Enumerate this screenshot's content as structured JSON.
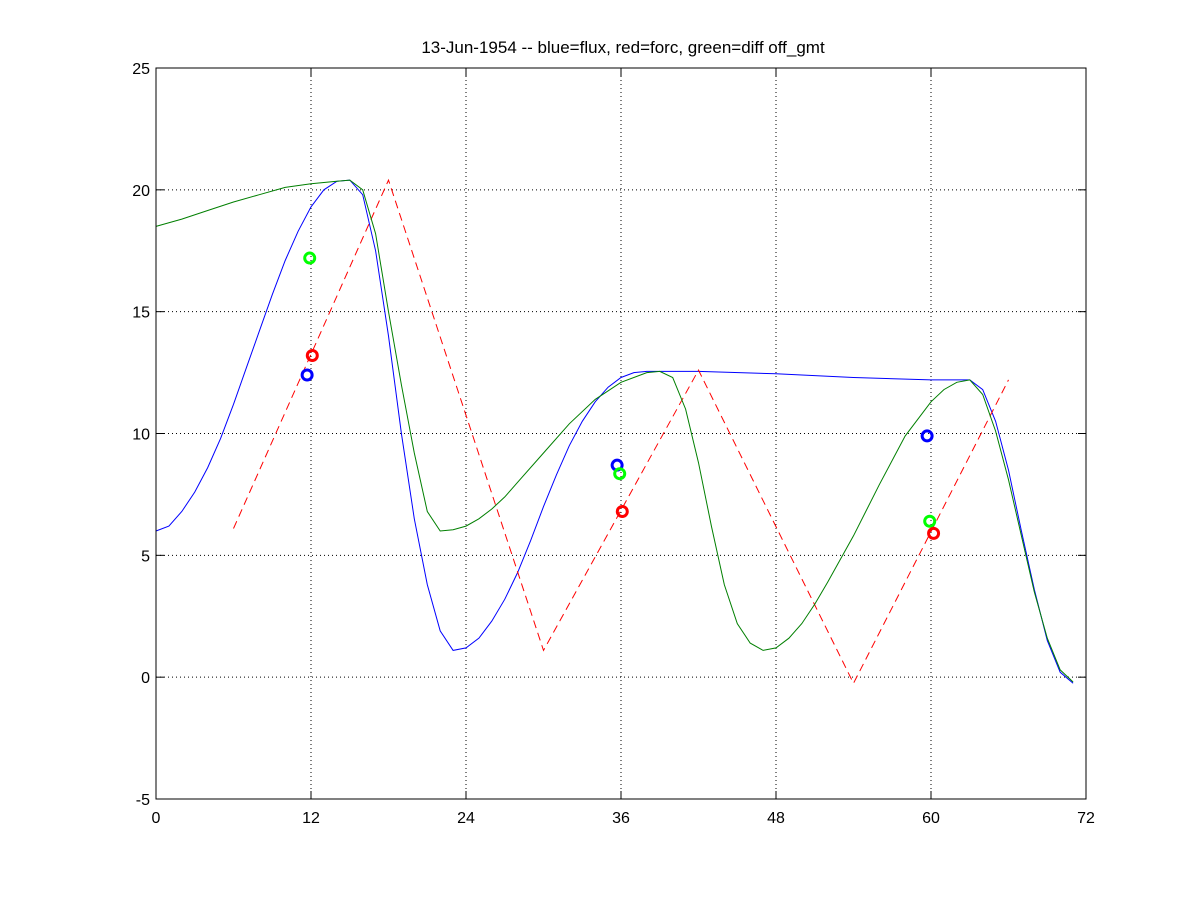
{
  "chart_data": {
    "type": "line",
    "title": "13-Jun-1954 -- blue=flux, red=forc, green=diff off_gmt",
    "xlabel": "",
    "ylabel": "",
    "xlim": [
      0,
      72
    ],
    "ylim": [
      -5,
      25
    ],
    "xticks": [
      0,
      12,
      24,
      36,
      48,
      60,
      72
    ],
    "yticks": [
      -5,
      0,
      5,
      10,
      15,
      20,
      25
    ],
    "grid": true,
    "series": [
      {
        "color": "#0000ff",
        "style": "solid",
        "x": [
          0,
          1,
          2,
          3,
          4,
          5,
          6,
          7,
          8,
          9,
          10,
          11,
          12,
          13,
          14,
          15,
          16,
          17,
          18,
          19,
          20,
          21,
          22,
          23,
          24,
          25,
          26,
          27,
          28,
          29,
          30,
          31,
          32,
          33,
          34,
          35,
          36,
          37,
          38,
          39,
          42,
          48,
          54,
          60,
          63,
          64,
          65,
          66,
          67,
          68,
          69,
          70,
          71
        ],
        "y": [
          6.0,
          6.2,
          6.8,
          7.6,
          8.6,
          9.8,
          11.2,
          12.7,
          14.2,
          15.7,
          17.1,
          18.3,
          19.3,
          20.0,
          20.35,
          20.4,
          19.8,
          17.5,
          14.0,
          10.0,
          6.5,
          3.8,
          1.9,
          1.1,
          1.2,
          1.6,
          2.3,
          3.2,
          4.3,
          5.6,
          7.0,
          8.3,
          9.5,
          10.5,
          11.3,
          11.9,
          12.3,
          12.5,
          12.55,
          12.55,
          12.55,
          12.45,
          12.3,
          12.2,
          12.2,
          11.8,
          10.5,
          8.5,
          6.0,
          3.6,
          1.5,
          0.2,
          -0.25
        ]
      },
      {
        "color": "#ff0000",
        "style": "dashed",
        "x": [
          6,
          18,
          30,
          42,
          54,
          66
        ],
        "y": [
          6.1,
          20.4,
          1.1,
          12.6,
          -0.25,
          12.2
        ]
      },
      {
        "color": "#007f00",
        "style": "solid",
        "x": [
          0,
          2,
          4,
          6,
          8,
          10,
          12,
          14,
          15,
          16,
          17,
          18,
          19,
          20,
          21,
          22,
          23,
          24,
          25,
          26,
          27,
          28,
          30,
          32,
          34,
          36,
          38,
          39,
          40,
          41,
          42,
          43,
          44,
          45,
          46,
          47,
          48,
          49,
          50,
          51,
          52,
          54,
          56,
          58,
          60,
          61,
          62,
          63,
          64,
          65,
          66,
          67,
          68,
          69,
          70,
          71
        ],
        "y": [
          18.5,
          18.8,
          19.15,
          19.5,
          19.8,
          20.1,
          20.25,
          20.35,
          20.4,
          20.0,
          18.2,
          15.0,
          12.0,
          9.2,
          6.8,
          6.0,
          6.05,
          6.2,
          6.5,
          6.9,
          7.4,
          8.0,
          9.2,
          10.4,
          11.4,
          12.1,
          12.5,
          12.55,
          12.3,
          11.0,
          8.8,
          6.2,
          3.8,
          2.2,
          1.4,
          1.1,
          1.2,
          1.6,
          2.2,
          3.0,
          3.9,
          5.8,
          7.9,
          9.9,
          11.3,
          11.8,
          12.1,
          12.2,
          11.6,
          10.1,
          8.1,
          5.8,
          3.5,
          1.6,
          0.3,
          -0.2
        ]
      }
    ],
    "markers": [
      {
        "color": "#0000ff",
        "x": 11.7,
        "y": 12.4
      },
      {
        "color": "#ff0000",
        "x": 12.1,
        "y": 13.2
      },
      {
        "color": "#00ff00",
        "x": 11.9,
        "y": 17.2
      },
      {
        "color": "#0000ff",
        "x": 35.7,
        "y": 8.7
      },
      {
        "color": "#00ff00",
        "x": 35.9,
        "y": 8.35
      },
      {
        "color": "#ff0000",
        "x": 36.1,
        "y": 6.8
      },
      {
        "color": "#0000ff",
        "x": 59.7,
        "y": 9.9
      },
      {
        "color": "#00ff00",
        "x": 59.9,
        "y": 6.4
      },
      {
        "color": "#ff0000",
        "x": 60.2,
        "y": 5.9
      }
    ]
  }
}
